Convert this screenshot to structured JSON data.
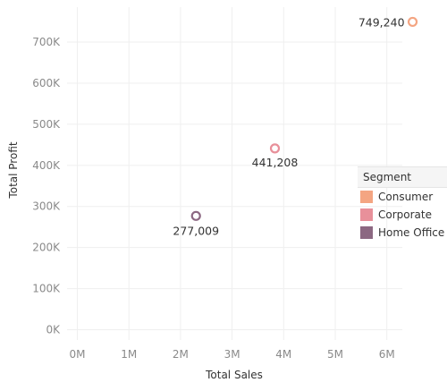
{
  "chart_data": {
    "type": "scatter",
    "xlabel": "Total Sales",
    "ylabel": "Total Profit",
    "xlim": [
      -0.2,
      6.3
    ],
    "ylim": [
      -25000,
      785000
    ],
    "x_ticks": [
      0,
      1,
      2,
      3,
      4,
      5,
      6
    ],
    "x_tick_labels": [
      "0M",
      "1M",
      "2M",
      "3M",
      "4M",
      "5M",
      "6M"
    ],
    "y_ticks": [
      0,
      100000,
      200000,
      300000,
      400000,
      500000,
      600000,
      700000
    ],
    "y_tick_labels": [
      "0K",
      "100K",
      "200K",
      "300K",
      "400K",
      "500K",
      "600K",
      "700K"
    ],
    "grid": true,
    "series": [
      {
        "name": "Consumer",
        "color": "#f4a582",
        "x": 6.5,
        "y": 749240,
        "label": "749,240"
      },
      {
        "name": "Corporate",
        "color": "#e8909a",
        "x": 3.83,
        "y": 441208,
        "label": "441,208"
      },
      {
        "name": "Home Office",
        "color": "#8c6882",
        "x": 2.3,
        "y": 277009,
        "label": "277,009"
      }
    ],
    "legend": {
      "title": "Segment",
      "placement": "right"
    }
  }
}
